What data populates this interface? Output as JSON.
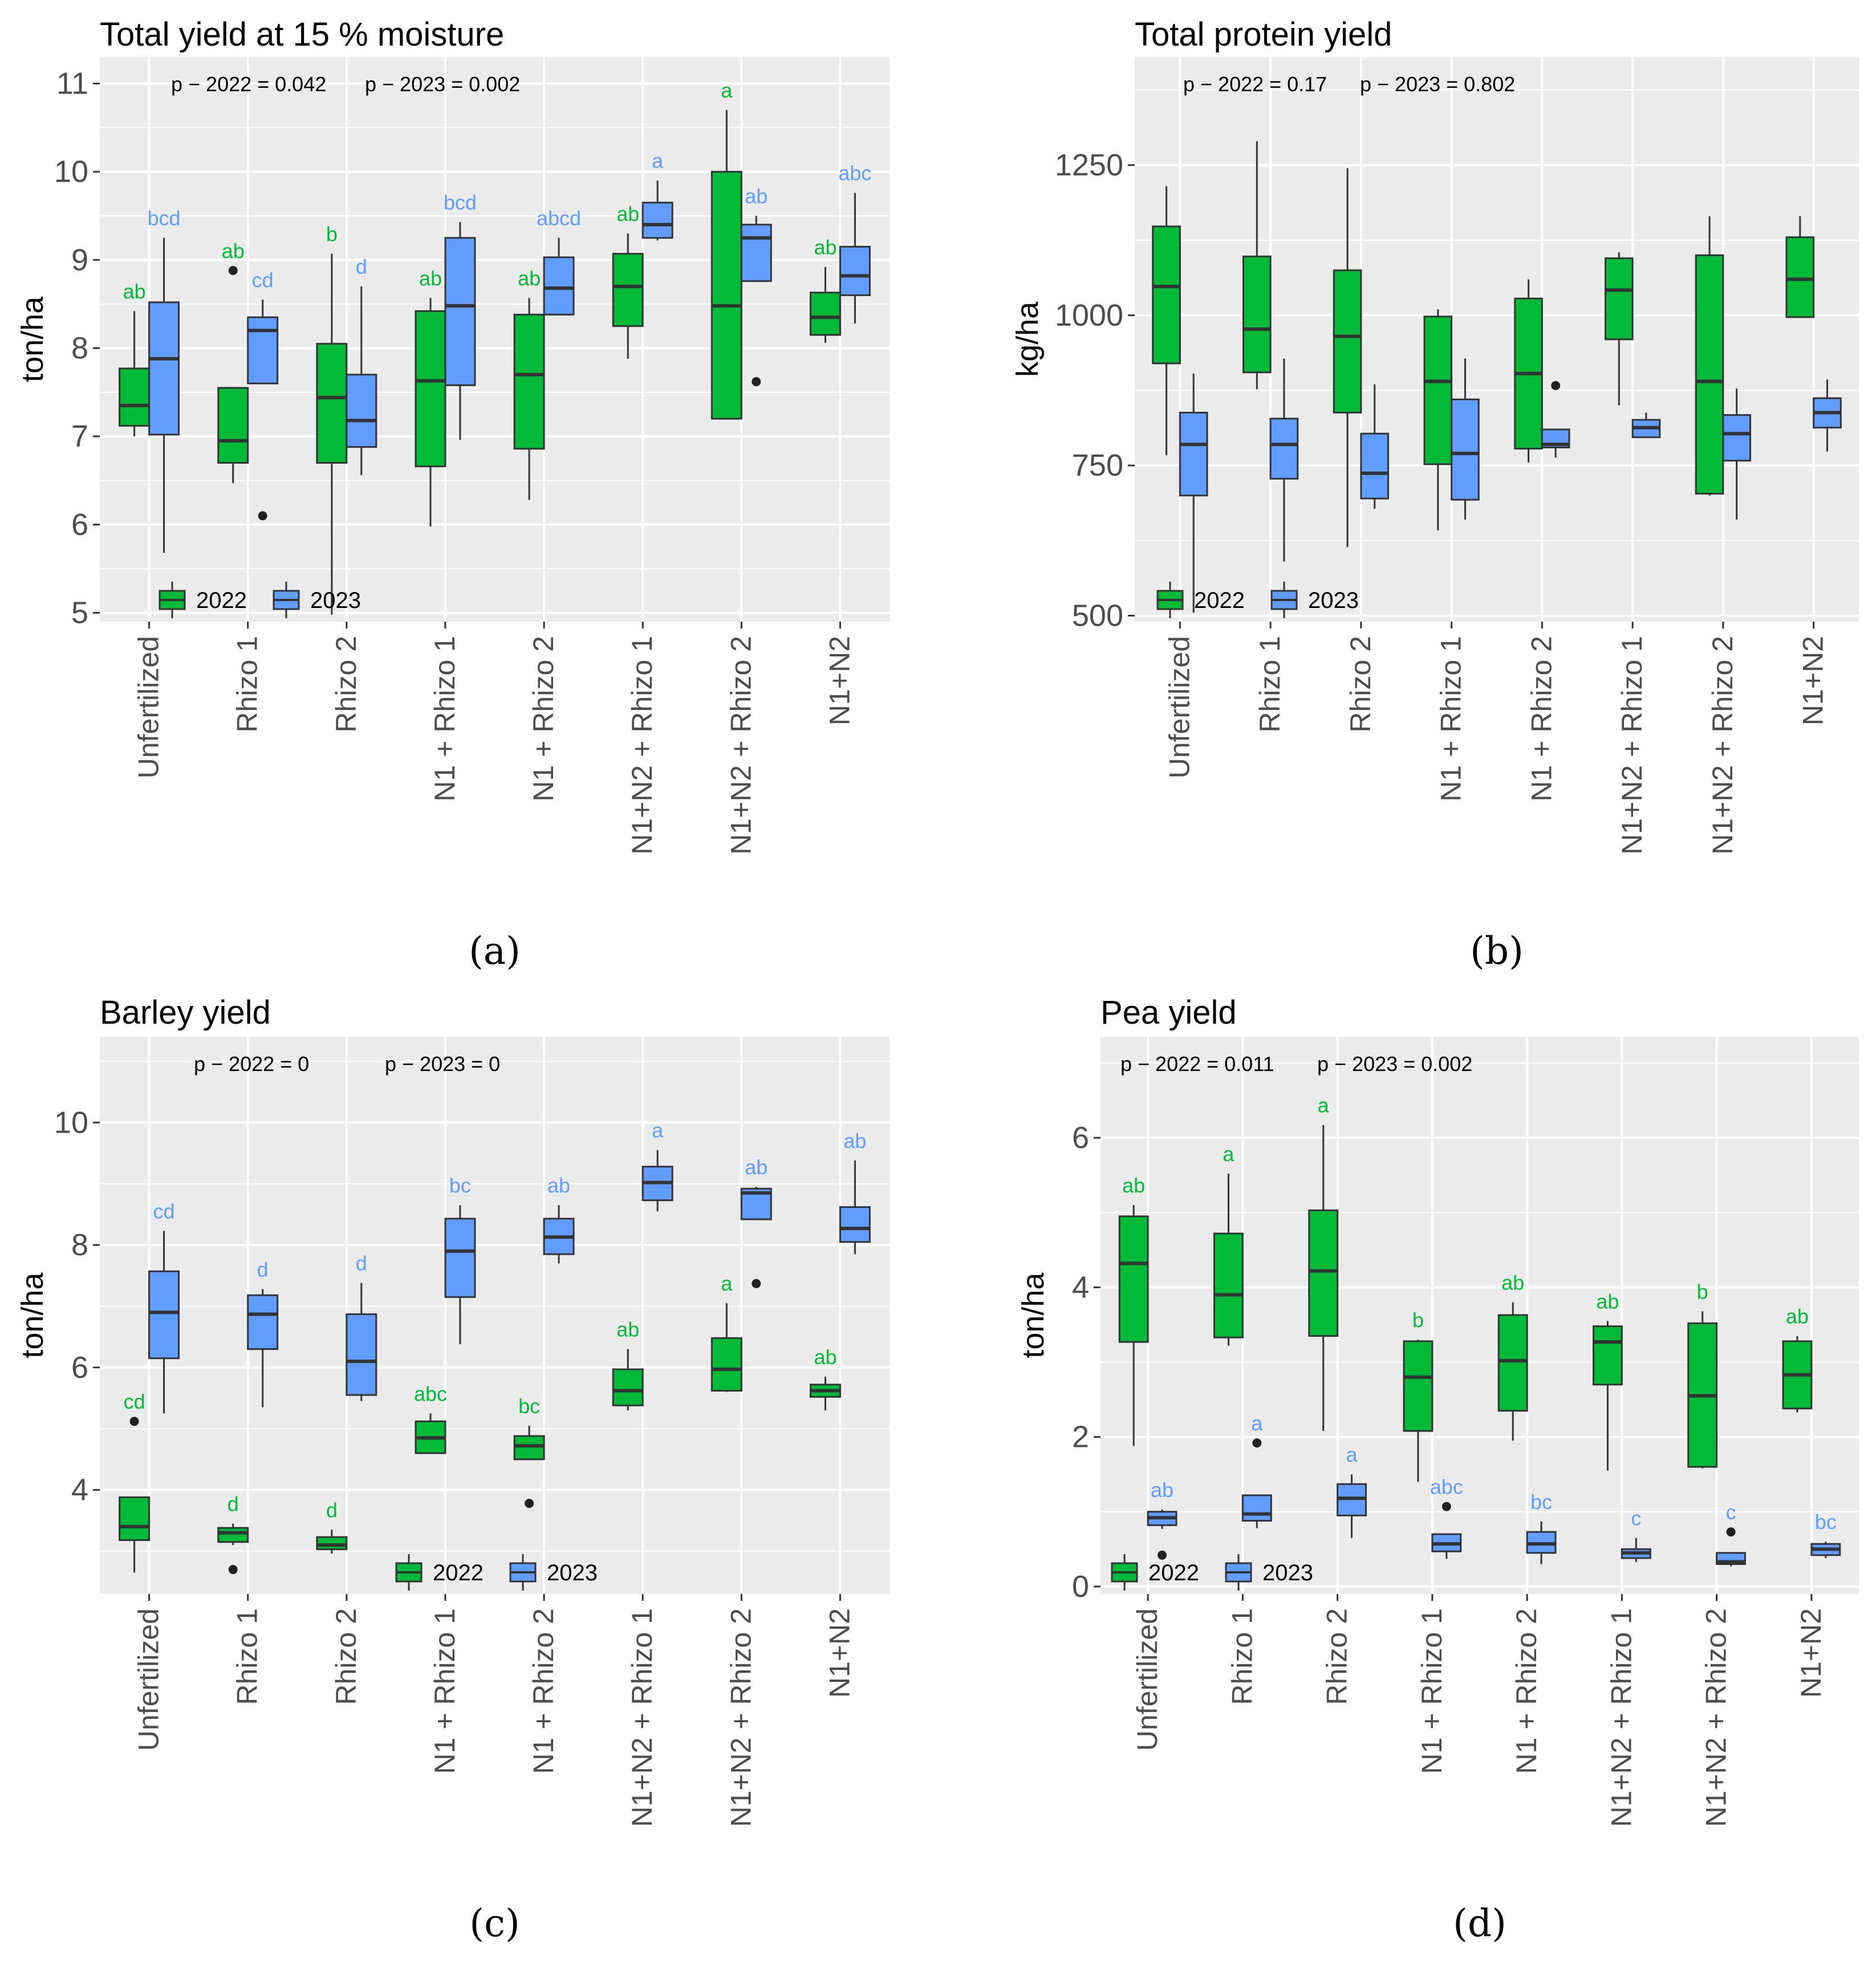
{
  "colors": {
    "y2022": "#00BA38",
    "y2023": "#619CFF",
    "panel_bg": "#EBEBEB",
    "grid": "#FFFFFF",
    "axis_text": "#4D4D4D",
    "box_edge": "#333333"
  },
  "legend": {
    "labels": [
      "2022",
      "2023"
    ]
  },
  "categories": [
    "Unfertilized",
    "Rhizo 1",
    "Rhizo 2",
    "N1 + Rhizo 1",
    "N1 + Rhizo 2",
    "N1+N2 + Rhizo 1",
    "N1+N2 + Rhizo 2",
    "N1+N2"
  ],
  "chart_data": [
    {
      "id": "a",
      "type": "box",
      "title": "Total yield at 15 % moisture",
      "ylabel": "ton/ha",
      "panel_label": "(a)",
      "pvalue_2022": "p − 2022 = 0.042",
      "pvalue_2023": "p − 2023 = 0.002",
      "ylim": [
        4.9,
        11.3
      ],
      "yticks": [
        5,
        6,
        7,
        8,
        9,
        10,
        11
      ],
      "yminor": [
        5.5,
        6.5,
        7.5,
        8.5,
        9.5,
        10.5
      ],
      "series": [
        {
          "name": "2022",
          "boxes": [
            {
              "min": 7.0,
              "q1": 7.12,
              "median": 7.35,
              "q3": 7.77,
              "max": 8.42,
              "outliers": [],
              "letter": "ab"
            },
            {
              "min": 6.47,
              "q1": 6.7,
              "median": 6.95,
              "q3": 7.55,
              "max": 7.55,
              "outliers": [
                8.88
              ],
              "letter": "ab"
            },
            {
              "min": 4.98,
              "q1": 6.7,
              "median": 7.44,
              "q3": 8.05,
              "max": 9.07,
              "outliers": [],
              "letter": "b"
            },
            {
              "min": 5.98,
              "q1": 6.66,
              "median": 7.63,
              "q3": 8.42,
              "max": 8.57,
              "outliers": [],
              "letter": "ab"
            },
            {
              "min": 6.28,
              "q1": 6.86,
              "median": 7.7,
              "q3": 8.38,
              "max": 8.57,
              "outliers": [],
              "letter": "ab"
            },
            {
              "min": 7.88,
              "q1": 8.25,
              "median": 8.7,
              "q3": 9.07,
              "max": 9.3,
              "outliers": [],
              "letter": "ab"
            },
            {
              "min": 7.2,
              "q1": 7.2,
              "median": 8.48,
              "q3": 10.0,
              "max": 10.7,
              "outliers": [],
              "letter": "a"
            },
            {
              "min": 8.06,
              "q1": 8.15,
              "median": 8.35,
              "q3": 8.63,
              "max": 8.92,
              "outliers": [],
              "letter": "ab"
            }
          ]
        },
        {
          "name": "2023",
          "boxes": [
            {
              "min": 5.68,
              "q1": 7.02,
              "median": 7.88,
              "q3": 8.52,
              "max": 9.25,
              "outliers": [],
              "letter": "bcd"
            },
            {
              "min": 7.6,
              "q1": 7.6,
              "median": 8.2,
              "q3": 8.35,
              "max": 8.55,
              "outliers": [
                6.1
              ],
              "letter": "cd"
            },
            {
              "min": 6.56,
              "q1": 6.88,
              "median": 7.18,
              "q3": 7.7,
              "max": 8.7,
              "outliers": [],
              "letter": "d"
            },
            {
              "min": 6.96,
              "q1": 7.58,
              "median": 8.48,
              "q3": 9.25,
              "max": 9.43,
              "outliers": [],
              "letter": "bcd"
            },
            {
              "min": 8.38,
              "q1": 8.38,
              "median": 8.68,
              "q3": 9.03,
              "max": 9.25,
              "outliers": [],
              "letter": "abcd"
            },
            {
              "min": 9.22,
              "q1": 9.25,
              "median": 9.4,
              "q3": 9.65,
              "max": 9.9,
              "outliers": [],
              "letter": "a"
            },
            {
              "min": 8.76,
              "q1": 8.76,
              "median": 9.25,
              "q3": 9.4,
              "max": 9.5,
              "outliers": [
                7.62
              ],
              "letter": "ab"
            },
            {
              "min": 8.28,
              "q1": 8.6,
              "median": 8.82,
              "q3": 9.15,
              "max": 9.76,
              "outliers": [],
              "letter": "abc"
            }
          ]
        }
      ]
    },
    {
      "id": "b",
      "type": "box",
      "title": "Total protein yield",
      "ylabel": "kg/ha",
      "panel_label": "(b)",
      "pvalue_2022": "p − 2022 = 0.17",
      "pvalue_2023": "p − 2023 = 0.802",
      "ylim": [
        490,
        1430
      ],
      "yticks": [
        500,
        750,
        1000,
        1250
      ],
      "yminor": [
        625,
        875,
        1125,
        1375
      ],
      "series": [
        {
          "name": "2022",
          "boxes": [
            {
              "min": 767,
              "q1": 920,
              "median": 1048,
              "q3": 1148,
              "max": 1215,
              "outliers": []
            },
            {
              "min": 877,
              "q1": 905,
              "median": 977,
              "q3": 1098,
              "max": 1290,
              "outliers": []
            },
            {
              "min": 614,
              "q1": 838,
              "median": 965,
              "q3": 1075,
              "max": 1245,
              "outliers": []
            },
            {
              "min": 642,
              "q1": 752,
              "median": 890,
              "q3": 998,
              "max": 1010,
              "outliers": []
            },
            {
              "min": 755,
              "q1": 778,
              "median": 903,
              "q3": 1028,
              "max": 1060,
              "outliers": []
            },
            {
              "min": 850,
              "q1": 960,
              "median": 1042,
              "q3": 1095,
              "max": 1105,
              "outliers": []
            },
            {
              "min": 700,
              "q1": 703,
              "median": 890,
              "q3": 1100,
              "max": 1165,
              "outliers": []
            },
            {
              "min": 997,
              "q1": 997,
              "median": 1060,
              "q3": 1130,
              "max": 1165,
              "outliers": []
            }
          ]
        },
        {
          "name": "2023",
          "boxes": [
            {
              "min": 505,
              "q1": 700,
              "median": 785,
              "q3": 838,
              "max": 903,
              "outliers": []
            },
            {
              "min": 590,
              "q1": 728,
              "median": 785,
              "q3": 828,
              "max": 928,
              "outliers": []
            },
            {
              "min": 678,
              "q1": 695,
              "median": 737,
              "q3": 803,
              "max": 885,
              "outliers": []
            },
            {
              "min": 660,
              "q1": 693,
              "median": 770,
              "q3": 860,
              "max": 928,
              "outliers": []
            },
            {
              "min": 763,
              "q1": 780,
              "median": 785,
              "q3": 810,
              "max": 810,
              "outliers": [
                883
              ]
            },
            {
              "min": 797,
              "q1": 797,
              "median": 813,
              "q3": 826,
              "max": 838,
              "outliers": []
            },
            {
              "min": 660,
              "q1": 758,
              "median": 803,
              "q3": 834,
              "max": 878,
              "outliers": []
            },
            {
              "min": 773,
              "q1": 813,
              "median": 838,
              "q3": 862,
              "max": 893,
              "outliers": []
            }
          ]
        }
      ]
    },
    {
      "id": "c",
      "type": "box",
      "title": "Barley yield",
      "ylabel": "ton/ha",
      "panel_label": "(c)",
      "pvalue_2022": "p − 2022 = 0",
      "pvalue_2023": "p − 2023 = 0",
      "ylim": [
        2.3,
        11.4
      ],
      "yticks": [
        4,
        6,
        8,
        10
      ],
      "yminor": [
        3,
        5,
        7,
        9,
        11
      ],
      "series": [
        {
          "name": "2022",
          "boxes": [
            {
              "min": 2.65,
              "q1": 3.18,
              "median": 3.4,
              "q3": 3.88,
              "max": 3.88,
              "outliers": [
                5.12
              ],
              "letter": "cd"
            },
            {
              "min": 3.1,
              "q1": 3.15,
              "median": 3.3,
              "q3": 3.38,
              "max": 3.45,
              "outliers": [
                2.7
              ],
              "letter": "d"
            },
            {
              "min": 2.96,
              "q1": 3.03,
              "median": 3.1,
              "q3": 3.23,
              "max": 3.35,
              "outliers": [],
              "letter": "d"
            },
            {
              "min": 4.6,
              "q1": 4.6,
              "median": 4.85,
              "q3": 5.12,
              "max": 5.25,
              "outliers": [],
              "letter": "abc"
            },
            {
              "min": 4.5,
              "q1": 4.5,
              "median": 4.72,
              "q3": 4.88,
              "max": 5.05,
              "outliers": [
                3.78
              ],
              "letter": "bc"
            },
            {
              "min": 5.3,
              "q1": 5.38,
              "median": 5.62,
              "q3": 5.97,
              "max": 6.3,
              "outliers": [],
              "letter": "ab"
            },
            {
              "min": 5.6,
              "q1": 5.62,
              "median": 5.97,
              "q3": 6.48,
              "max": 7.05,
              "outliers": [],
              "letter": "a"
            },
            {
              "min": 5.3,
              "q1": 5.52,
              "median": 5.62,
              "q3": 5.72,
              "max": 5.85,
              "outliers": [],
              "letter": "ab"
            }
          ]
        },
        {
          "name": "2023",
          "boxes": [
            {
              "min": 5.25,
              "q1": 6.15,
              "median": 6.9,
              "q3": 7.57,
              "max": 8.23,
              "outliers": [],
              "letter": "cd"
            },
            {
              "min": 5.35,
              "q1": 6.3,
              "median": 6.87,
              "q3": 7.18,
              "max": 7.28,
              "outliers": [],
              "letter": "d"
            },
            {
              "min": 5.45,
              "q1": 5.55,
              "median": 6.1,
              "q3": 6.87,
              "max": 7.38,
              "outliers": [],
              "letter": "d"
            },
            {
              "min": 6.38,
              "q1": 7.15,
              "median": 7.9,
              "q3": 8.43,
              "max": 8.65,
              "outliers": [],
              "letter": "bc"
            },
            {
              "min": 7.7,
              "q1": 7.85,
              "median": 8.13,
              "q3": 8.43,
              "max": 8.65,
              "outliers": [],
              "letter": "ab"
            },
            {
              "min": 8.55,
              "q1": 8.73,
              "median": 9.02,
              "q3": 9.28,
              "max": 9.55,
              "outliers": [],
              "letter": "a"
            },
            {
              "min": 8.42,
              "q1": 8.42,
              "median": 8.85,
              "q3": 8.92,
              "max": 8.95,
              "outliers": [
                7.37
              ],
              "letter": "ab"
            },
            {
              "min": 7.85,
              "q1": 8.05,
              "median": 8.27,
              "q3": 8.62,
              "max": 9.38,
              "outliers": [],
              "letter": "ab"
            }
          ]
        }
      ]
    },
    {
      "id": "d",
      "type": "box",
      "title": "Pea yield",
      "ylabel": "ton/ha",
      "panel_label": "(d)",
      "pvalue_2022": "p − 2022 = 0.011",
      "pvalue_2023": "p − 2023 = 0.002",
      "ylim": [
        -0.1,
        7.35
      ],
      "yticks": [
        0,
        2,
        4,
        6
      ],
      "yminor": [
        1,
        3,
        5,
        7
      ],
      "series": [
        {
          "name": "2022",
          "boxes": [
            {
              "min": 1.88,
              "q1": 3.27,
              "median": 4.32,
              "q3": 4.95,
              "max": 5.1,
              "outliers": [],
              "letter": "ab"
            },
            {
              "min": 3.22,
              "q1": 3.33,
              "median": 3.9,
              "q3": 4.72,
              "max": 5.52,
              "outliers": [],
              "letter": "a"
            },
            {
              "min": 2.08,
              "q1": 3.35,
              "median": 4.22,
              "q3": 5.03,
              "max": 6.17,
              "outliers": [],
              "letter": "a"
            },
            {
              "min": 1.4,
              "q1": 2.08,
              "median": 2.8,
              "q3": 3.28,
              "max": 3.3,
              "outliers": [],
              "letter": "b"
            },
            {
              "min": 1.95,
              "q1": 2.35,
              "median": 3.02,
              "q3": 3.63,
              "max": 3.8,
              "outliers": [],
              "letter": "ab"
            },
            {
              "min": 1.55,
              "q1": 2.7,
              "median": 3.27,
              "q3": 3.48,
              "max": 3.55,
              "outliers": [],
              "letter": "ab"
            },
            {
              "min": 1.58,
              "q1": 1.6,
              "median": 2.55,
              "q3": 3.52,
              "max": 3.68,
              "outliers": [],
              "letter": "b"
            },
            {
              "min": 2.33,
              "q1": 2.38,
              "median": 2.83,
              "q3": 3.28,
              "max": 3.35,
              "outliers": [],
              "letter": "ab"
            }
          ]
        },
        {
          "name": "2023",
          "boxes": [
            {
              "min": 0.77,
              "q1": 0.82,
              "median": 0.92,
              "q3": 1.0,
              "max": 1.03,
              "outliers": [
                0.42
              ],
              "letter": "ab"
            },
            {
              "min": 0.78,
              "q1": 0.88,
              "median": 0.97,
              "q3": 1.22,
              "max": 1.22,
              "outliers": [
                1.92
              ],
              "letter": "a"
            },
            {
              "min": 0.65,
              "q1": 0.95,
              "median": 1.18,
              "q3": 1.37,
              "max": 1.5,
              "outliers": [],
              "letter": "a"
            },
            {
              "min": 0.37,
              "q1": 0.47,
              "median": 0.57,
              "q3": 0.7,
              "max": 0.7,
              "outliers": [
                1.07
              ],
              "letter": "abc"
            },
            {
              "min": 0.3,
              "q1": 0.45,
              "median": 0.57,
              "q3": 0.73,
              "max": 0.87,
              "outliers": [],
              "letter": "bc"
            },
            {
              "min": 0.33,
              "q1": 0.38,
              "median": 0.45,
              "q3": 0.5,
              "max": 0.65,
              "outliers": [],
              "letter": "c"
            },
            {
              "min": 0.27,
              "q1": 0.3,
              "median": 0.33,
              "q3": 0.45,
              "max": 0.45,
              "outliers": [
                0.73
              ],
              "letter": "c"
            },
            {
              "min": 0.38,
              "q1": 0.42,
              "median": 0.5,
              "q3": 0.57,
              "max": 0.6,
              "outliers": [],
              "letter": "bc"
            }
          ]
        }
      ]
    }
  ]
}
